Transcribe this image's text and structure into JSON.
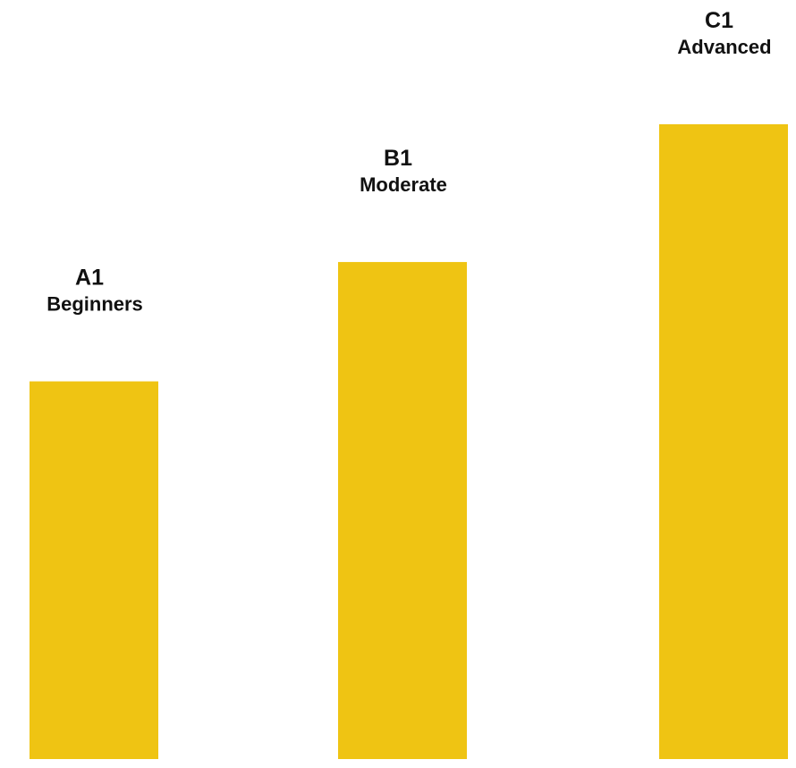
{
  "chart_data": {
    "type": "bar",
    "title": "",
    "xlabel": "",
    "ylabel": "",
    "ylim": [
      0,
      100
    ],
    "grid": false,
    "color": "#EFC413",
    "categories": [
      "A1",
      "B1",
      "C1"
    ],
    "labels": [
      "Beginners",
      "Moderate",
      "Advanced"
    ],
    "values": [
      59.5,
      78.3,
      100
    ]
  }
}
